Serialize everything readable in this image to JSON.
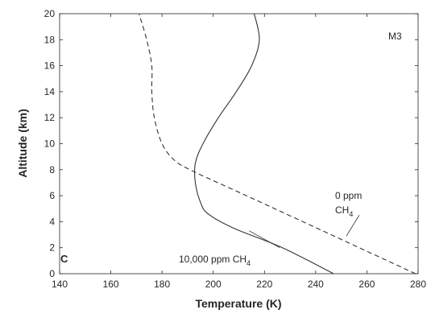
{
  "chart_data": {
    "type": "line",
    "xlabel": "Temperature (K)",
    "ylabel": "Altitude (km)",
    "xlim": [
      140,
      280
    ],
    "ylim": [
      0,
      20
    ],
    "xticks": [
      140,
      160,
      180,
      200,
      220,
      240,
      260,
      280
    ],
    "yticks": [
      0,
      2,
      4,
      6,
      8,
      10,
      12,
      14,
      16,
      18,
      20
    ],
    "grid": false,
    "panel_label": "C",
    "model_label": "M3",
    "series": [
      {
        "name": "0 ppm CH4",
        "style": "dashed",
        "color": "#333333",
        "points": [
          [
            279,
            0
          ],
          [
            257,
            2
          ],
          [
            235,
            4
          ],
          [
            213,
            6
          ],
          [
            193,
            7.8
          ],
          [
            185,
            8.7
          ],
          [
            180,
            10
          ],
          [
            177,
            12
          ],
          [
            176,
            14
          ],
          [
            176,
            16
          ],
          [
            174,
            18
          ],
          [
            171,
            20
          ]
        ]
      },
      {
        "name": "10,000 ppm CH4",
        "style": "solid",
        "color": "#333333",
        "points": [
          [
            247,
            0
          ],
          [
            227,
            2
          ],
          [
            208,
            3.5
          ],
          [
            198,
            4.6
          ],
          [
            195,
            5.5
          ],
          [
            193,
            7
          ],
          [
            193,
            8.5
          ],
          [
            196,
            10
          ],
          [
            202,
            12
          ],
          [
            209,
            14
          ],
          [
            215,
            16
          ],
          [
            218,
            18
          ],
          [
            216,
            20
          ]
        ]
      }
    ],
    "annotations": [
      {
        "id": "zero",
        "lines": [
          "0 ppm",
          "CH",
          "4"
        ],
        "at": [
          258,
          5.8
        ],
        "pointer": [
          [
            257,
            4.5
          ],
          [
            252,
            2.9
          ]
        ]
      },
      {
        "id": "tenk",
        "lines": [
          "10,000 ppm CH",
          "4"
        ],
        "at": [
          217,
          0.7
        ],
        "pointer": [
          [
            226,
            2.0
          ],
          [
            214,
            3.3
          ]
        ]
      }
    ]
  }
}
